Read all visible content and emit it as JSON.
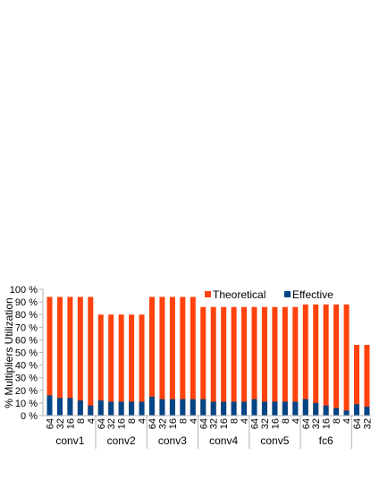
{
  "chart_data": {
    "type": "bar",
    "stacked": "overlay",
    "ylabel": "% Multipliers Utilization",
    "ylim": [
      0,
      100
    ],
    "yticks": [
      "0 %",
      "10 %",
      "20 %",
      "30 %",
      "40 %",
      "50 %",
      "60 %",
      "70 %",
      "80 %",
      "90 %",
      "100 %"
    ],
    "legend_position": "top-right",
    "grid": false,
    "groups": [
      {
        "label": "conv1",
        "categories": [
          "64",
          "32",
          "16",
          "8",
          "4"
        ],
        "theoretical": [
          94,
          94,
          94,
          94,
          94
        ],
        "effective": [
          16,
          14,
          14,
          12,
          8
        ]
      },
      {
        "label": "conv2",
        "categories": [
          "64",
          "32",
          "16",
          "8",
          "4"
        ],
        "theoretical": [
          80,
          80,
          80,
          80,
          80
        ],
        "effective": [
          12,
          11,
          11,
          11,
          11
        ]
      },
      {
        "label": "conv3",
        "categories": [
          "64",
          "32",
          "16",
          "8",
          "4"
        ],
        "theoretical": [
          94,
          94,
          94,
          94,
          94
        ],
        "effective": [
          15,
          13,
          13,
          13,
          13
        ]
      },
      {
        "label": "conv4",
        "categories": [
          "64",
          "32",
          "16",
          "8",
          "4"
        ],
        "theoretical": [
          86,
          86,
          86,
          86,
          86
        ],
        "effective": [
          13,
          11,
          11,
          11,
          11
        ]
      },
      {
        "label": "conv5",
        "categories": [
          "64",
          "32",
          "16",
          "8",
          "4"
        ],
        "theoretical": [
          86,
          86,
          86,
          86,
          86
        ],
        "effective": [
          13,
          11,
          11,
          11,
          11
        ]
      },
      {
        "label": "fc6",
        "categories": [
          "64",
          "32",
          "16",
          "8",
          "4"
        ],
        "theoretical": [
          88,
          88,
          88,
          88,
          88
        ],
        "effective": [
          13,
          10,
          8,
          6,
          4
        ]
      },
      {
        "label": "",
        "categories": [
          "64",
          "32"
        ],
        "theoretical": [
          56,
          56
        ],
        "effective": [
          9,
          7
        ]
      }
    ],
    "series": [
      {
        "name": "Theoretical",
        "color": "#ff420e"
      },
      {
        "name": "Effective",
        "color": "#004586"
      }
    ]
  }
}
